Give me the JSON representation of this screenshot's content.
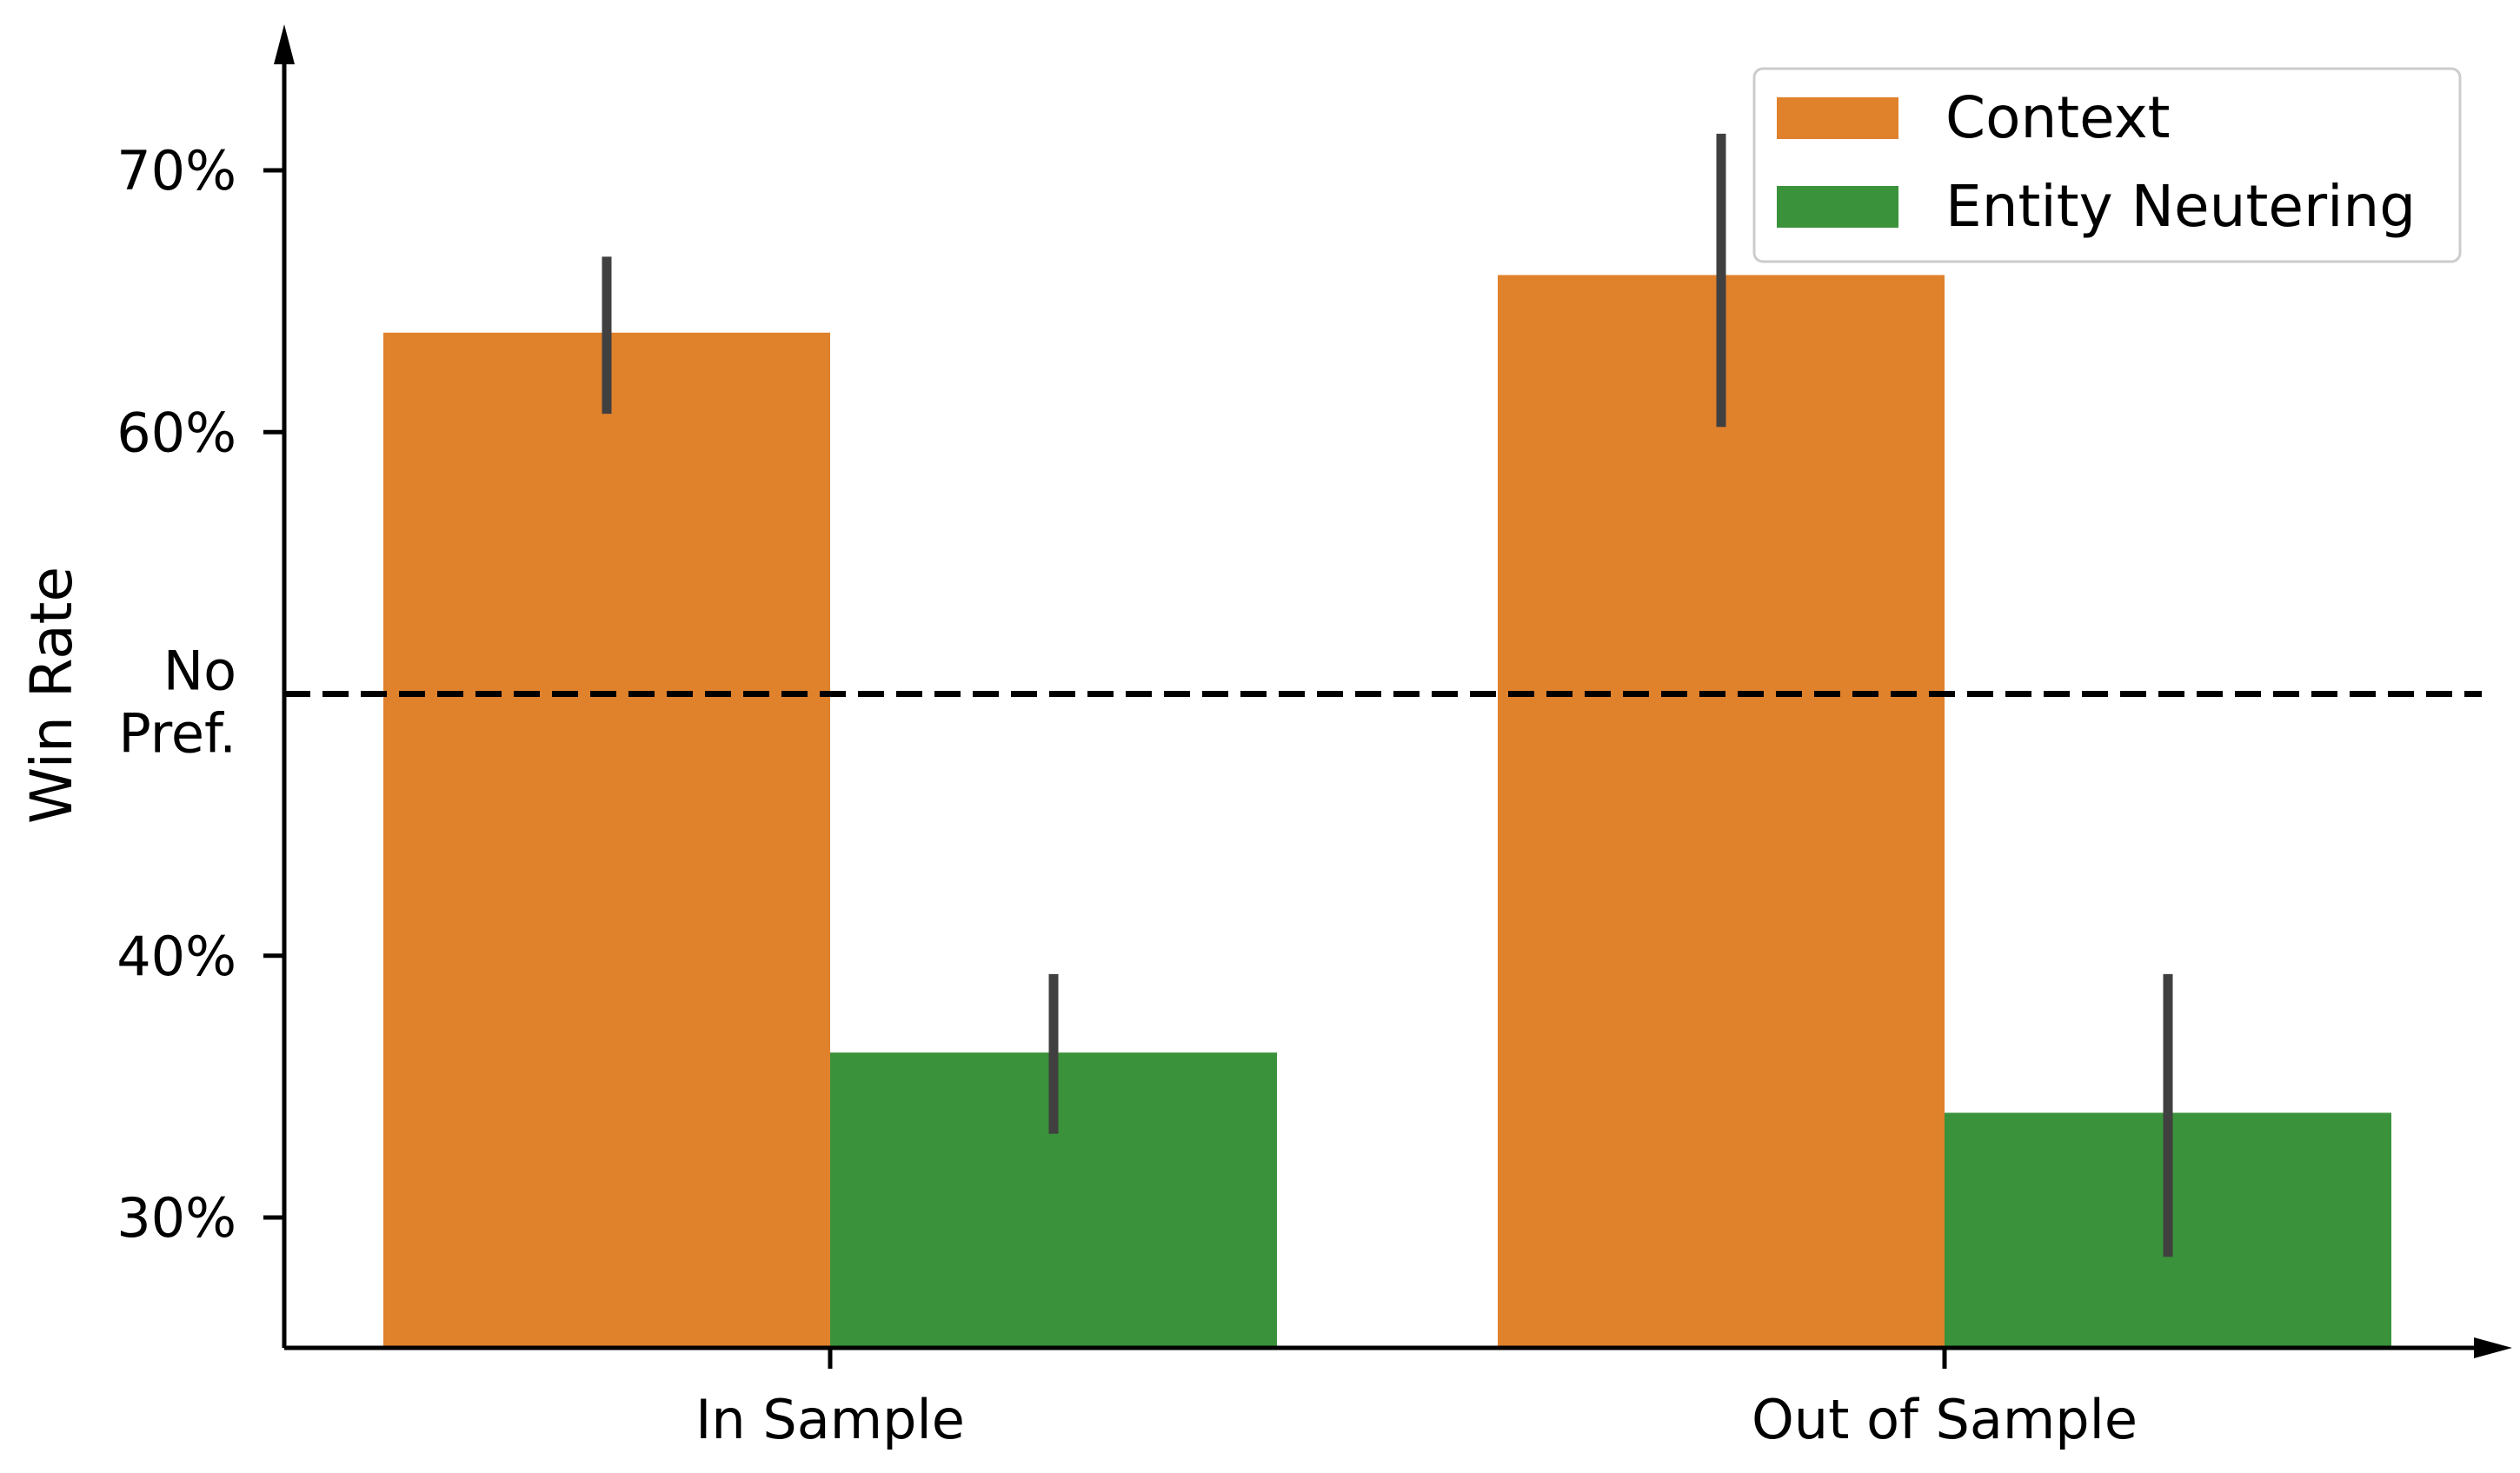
{
  "chart_data": {
    "type": "bar",
    "categories": [
      "In Sample",
      "Out of Sample"
    ],
    "series": [
      {
        "name": "Context",
        "color": "#e0812c",
        "values": [
          63.8,
          66.0
        ],
        "error": [
          [
            60.7,
            66.7
          ],
          [
            60.2,
            71.4
          ]
        ]
      },
      {
        "name": "Entity Neutering",
        "color": "#3a923a",
        "values": [
          36.3,
          34.0
        ],
        "error": [
          [
            33.2,
            39.3
          ],
          [
            28.5,
            39.3
          ]
        ]
      }
    ],
    "ylabel": "Win Rate",
    "xlabel": "",
    "ylim": [
      25,
      75
    ],
    "yticks": [
      {
        "value": 30,
        "label": "30%"
      },
      {
        "value": 40,
        "label": "40%"
      },
      {
        "value": 60,
        "label": "60%"
      },
      {
        "value": 70,
        "label": "70%"
      }
    ],
    "reference_line": {
      "value": 50,
      "label_line1": "No",
      "label_line2": "Pref.",
      "style": "dashed"
    },
    "legend_position": "top-right",
    "error_bar_color": "#404040",
    "axis_color": "#000000"
  }
}
